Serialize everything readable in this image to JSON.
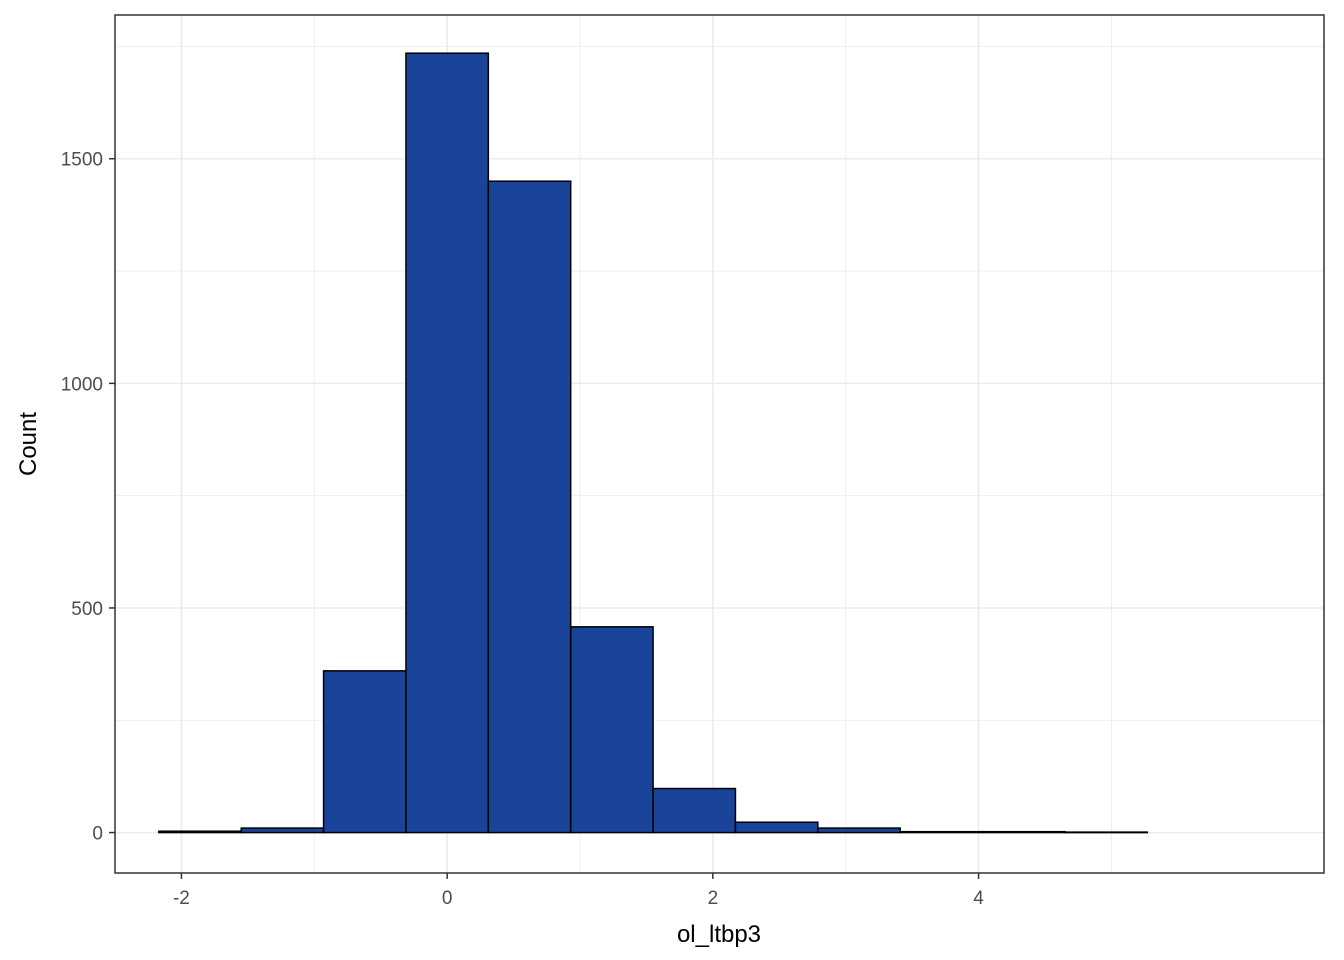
{
  "chart_data": {
    "type": "bar",
    "subtype": "histogram",
    "title": "",
    "xlabel": "ol_ltbp3",
    "ylabel": "Count",
    "xlim": [
      -2.5,
      6.6
    ],
    "ylim": [
      -90,
      1820
    ],
    "x_ticks": [
      -2,
      0,
      2,
      4
    ],
    "y_ticks": [
      0,
      500,
      1000,
      1500
    ],
    "x_tick_labels": [
      "-2",
      "0",
      "2",
      "4"
    ],
    "y_tick_labels": [
      "0",
      "500",
      "1000",
      "1500"
    ],
    "grid": true,
    "legend": "none",
    "bin_width": 0.62,
    "bins": [
      {
        "x_start": -2.17,
        "x_end": -1.55,
        "count": 3
      },
      {
        "x_start": -1.55,
        "x_end": -0.93,
        "count": 10
      },
      {
        "x_start": -0.93,
        "x_end": -0.31,
        "count": 360
      },
      {
        "x_start": -0.31,
        "x_end": 0.31,
        "count": 1735
      },
      {
        "x_start": 0.31,
        "x_end": 0.93,
        "count": 1450
      },
      {
        "x_start": 0.93,
        "x_end": 1.55,
        "count": 458
      },
      {
        "x_start": 1.55,
        "x_end": 2.17,
        "count": 98
      },
      {
        "x_start": 2.17,
        "x_end": 2.79,
        "count": 23
      },
      {
        "x_start": 2.79,
        "x_end": 3.41,
        "count": 10
      },
      {
        "x_start": 3.41,
        "x_end": 4.03,
        "count": 2
      },
      {
        "x_start": 4.03,
        "x_end": 4.65,
        "count": 2
      },
      {
        "x_start": 4.65,
        "x_end": 5.27,
        "count": 1
      }
    ],
    "fill_color": "#1a4499",
    "edge_color": "#000000",
    "panel_background": "#ffffff",
    "grid_color": "#ebebeb",
    "panel_border_color": "#333333"
  }
}
